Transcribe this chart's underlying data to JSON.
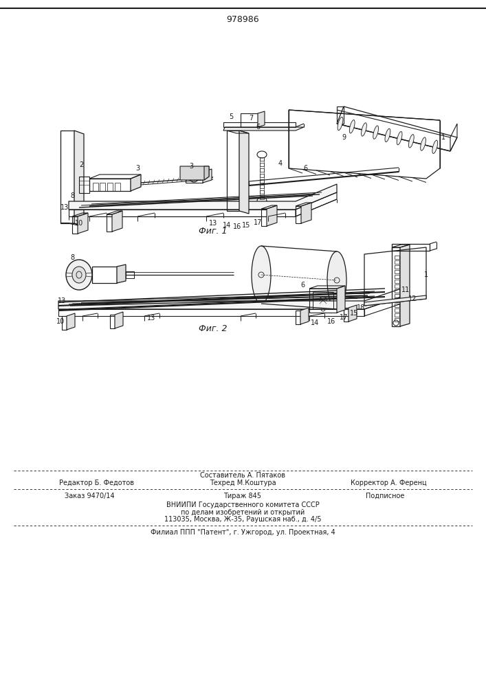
{
  "patent_number": "978986",
  "fig1_caption": "Фиг. 1",
  "fig2_caption": "Фиг. 2",
  "bg_color": "#ffffff",
  "line_color": "#1a1a1a",
  "text_color": "#1a1a1a",
  "footer": {
    "sestavitel": "Составитель А. Пятаков",
    "redaktor": "Редактор Б. Федотов",
    "tehred": "Техред М.Коштура",
    "korrektor": "Корректор А. Ференц",
    "zakaz": "Заказ 9470/14",
    "tirazh": "Тираж 845",
    "podpisnoe": "Подписное",
    "vniipи": "ВНИИПИ Государственного комитета СССР",
    "po_delam": "по делам изобретений и открытий",
    "address": "113035, Москва, Ж-35, Раушская наб., д. 4/5",
    "filial": "Филиал ППП \"Патент\", г. Ужгород, ул. Проектная, 4"
  }
}
